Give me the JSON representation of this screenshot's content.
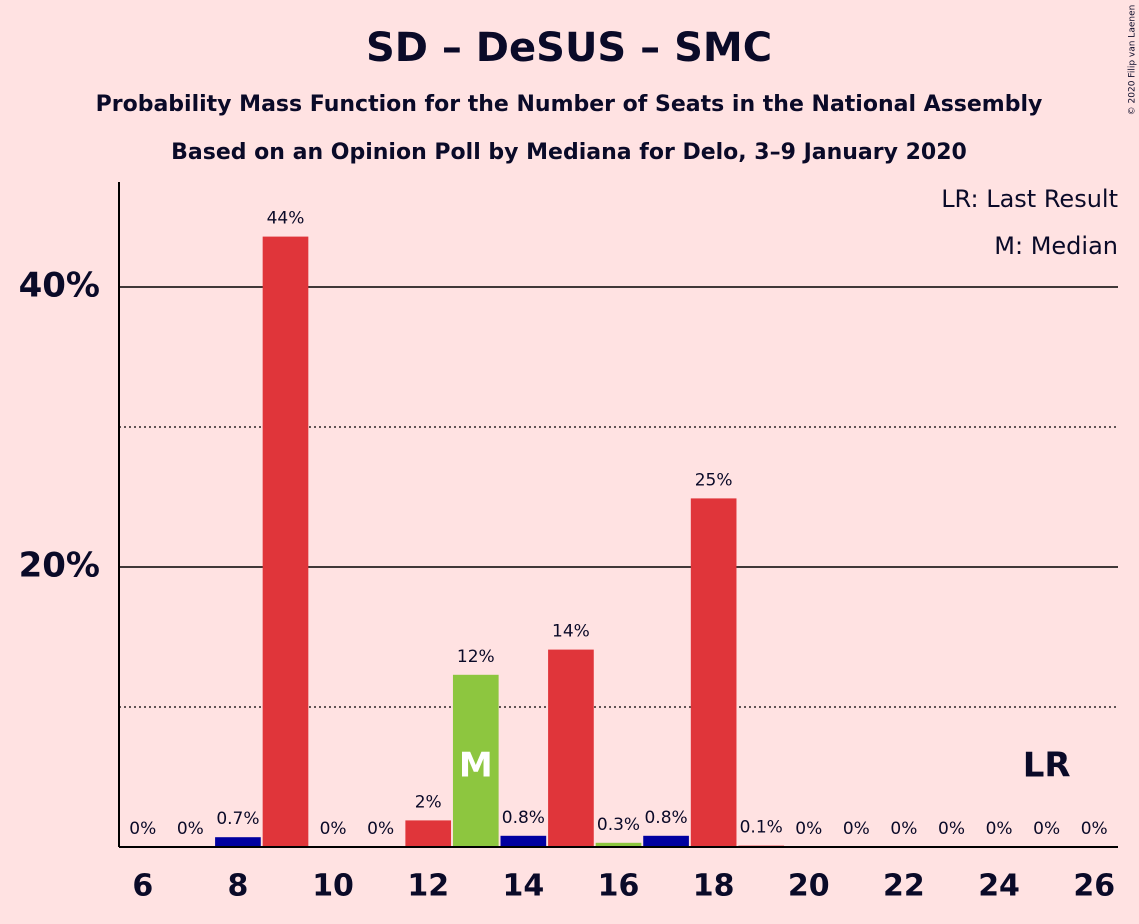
{
  "chart_data": {
    "type": "bar",
    "title": "SD – DeSUS – SMC",
    "subtitle": [
      "Probability Mass Function for the Number of Seats in the National Assembly",
      "Based on an Opinion Poll by Mediana for Delo, 3–9 January 2020"
    ],
    "copyright": "© 2020 Filip van Laenen",
    "x": [
      6,
      7,
      8,
      9,
      10,
      11,
      12,
      13,
      14,
      15,
      16,
      17,
      18,
      19,
      20,
      21,
      22,
      23,
      24,
      25,
      26
    ],
    "values": [
      0,
      0,
      0.7,
      43.6,
      0,
      0,
      1.9,
      12.3,
      0.8,
      14.1,
      0.3,
      0.8,
      24.9,
      0.1,
      0,
      0,
      0,
      0,
      0,
      0,
      0
    ],
    "value_labels": [
      "0%",
      "0%",
      "0.7%",
      "44%",
      "0%",
      "0%",
      "2%",
      "12%",
      "0.8%",
      "14%",
      "0.3%",
      "0.8%",
      "25%",
      "0.1%",
      "0%",
      "0%",
      "0%",
      "0%",
      "0%",
      "0%",
      "0%"
    ],
    "colors": [
      "#e0353a",
      "#e0353a",
      "#0000a0",
      "#e0353a",
      "#e0353a",
      "#e0353a",
      "#e0353a",
      "#8dc63f",
      "#0000a0",
      "#e0353a",
      "#8dc63f",
      "#0000a0",
      "#e0353a",
      "#e0353a",
      "#e0353a",
      "#e0353a",
      "#e0353a",
      "#e0353a",
      "#e0353a",
      "#e0353a",
      "#e0353a"
    ],
    "xlim": [
      5.5,
      26.5
    ],
    "xticks": [
      6,
      8,
      10,
      12,
      14,
      16,
      18,
      20,
      22,
      24,
      26
    ],
    "ylim": [
      0,
      47.5
    ],
    "yticks": [
      {
        "value": 20,
        "label": "20%"
      },
      {
        "value": 40,
        "label": "40%"
      }
    ],
    "minor_yticks": [
      10,
      30
    ],
    "markers": [
      {
        "x": 13,
        "label": "M"
      },
      {
        "x": 25,
        "label": "LR"
      }
    ],
    "legend": [
      "LR: Last Result",
      "M: Median"
    ]
  }
}
